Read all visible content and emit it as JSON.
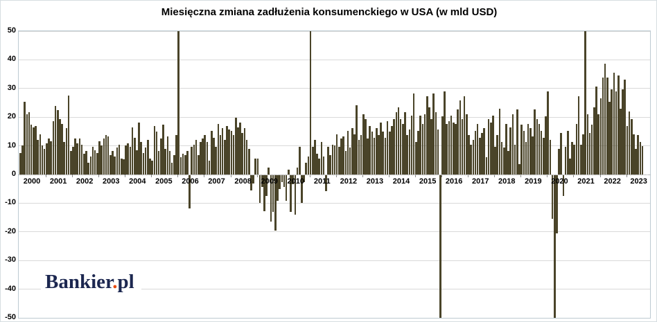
{
  "title": "Miesięczna zmiana zadłużenia konsumenckiego w USA (w mld USD)",
  "logo": {
    "text_main": "Bankier",
    "dot": ".",
    "text_suffix": "pl"
  },
  "colors": {
    "bar": "#4a4429",
    "grid": "#d9d9d9",
    "zero_axis": "#8a8a8a",
    "plot_border": "#bdcad1",
    "text": "#000000",
    "logo_navy": "#1c2750",
    "logo_dot": "#e8490f"
  },
  "chart_data": {
    "type": "bar",
    "title": "Miesięczna zmiana zadłużenia konsumenckiego w USA (w mld USD)",
    "ylabel": "mld USD",
    "xlabel": "",
    "frequency": "monthly",
    "x_start": "2000-01",
    "x_end": "2023-08",
    "ylim": [
      -50,
      50
    ],
    "grid": true,
    "legend_position": "none",
    "y_ticks": [
      50,
      40,
      30,
      20,
      10,
      0,
      -10,
      -20,
      -30,
      -40,
      -50
    ],
    "year_labels": [
      "2000",
      "2001",
      "2002",
      "2003",
      "2004",
      "2005",
      "2006",
      "2007",
      "2008",
      "2009",
      "2010",
      "2011",
      "2012",
      "2013",
      "2014",
      "2015",
      "2016",
      "2017",
      "2018",
      "2019",
      "2020",
      "2021",
      "2022",
      "2023"
    ],
    "clipped_to_ylim": true,
    "series": [
      {
        "name": "Miesięczna zmiana zadłużenia",
        "values": [
          7.5,
          10.1,
          25.4,
          20.9,
          21.7,
          17.3,
          16.5,
          16.9,
          12.1,
          14.1,
          10.1,
          8.9,
          10.9,
          12.5,
          11.7,
          18.5,
          23.8,
          22.5,
          19.3,
          17.7,
          11.3,
          16.1,
          27.5,
          8.1,
          9.7,
          12.5,
          10.9,
          12.5,
          10.5,
          7.2,
          8.1,
          4.0,
          6.4,
          9.7,
          8.5,
          7.6,
          11.7,
          10.1,
          12.5,
          13.7,
          13.3,
          6.8,
          8.1,
          6.4,
          9.3,
          10.5,
          5.6,
          5.2,
          10.1,
          10.9,
          9.7,
          16.5,
          12.9,
          8.5,
          18.1,
          11.3,
          7.6,
          9.3,
          12.1,
          5.6,
          4.8,
          16.9,
          14.9,
          8.1,
          12.5,
          17.3,
          8.9,
          13.3,
          8.1,
          4.0,
          6.8,
          13.7,
          55.0,
          6.0,
          7.2,
          6.8,
          8.1,
          -11.5,
          9.7,
          10.5,
          12.1,
          6.8,
          11.3,
          12.5,
          13.7,
          11.3,
          4.8,
          15.3,
          12.9,
          9.7,
          17.7,
          13.7,
          16.1,
          12.1,
          16.9,
          15.7,
          15.3,
          13.7,
          19.7,
          16.5,
          18.1,
          14.5,
          16.1,
          12.1,
          8.9,
          -5.2,
          -2.8,
          5.6,
          5.6,
          -9.7,
          -4.0,
          -12.5,
          -7.2,
          2.4,
          -16.1,
          -12.9,
          -19.3,
          -8.9,
          -4.8,
          -2.4,
          -4.0,
          -8.9,
          1.6,
          -12.9,
          -3.2,
          -13.7,
          2.4,
          9.7,
          -9.7,
          -2.4,
          4.0,
          6.4,
          55.0,
          9.7,
          12.1,
          7.2,
          5.6,
          11.3,
          6.4,
          -5.6,
          9.7,
          6.8,
          10.5,
          10.1,
          14.1,
          9.7,
          12.5,
          13.3,
          8.1,
          15.3,
          9.3,
          16.1,
          14.1,
          24.2,
          12.1,
          13.7,
          21.0,
          19.3,
          12.5,
          16.9,
          14.9,
          12.9,
          16.1,
          13.7,
          18.1,
          14.9,
          12.9,
          18.5,
          14.9,
          16.9,
          19.3,
          21.8,
          23.4,
          19.3,
          17.7,
          21.8,
          13.7,
          15.7,
          20.6,
          28.2,
          11.3,
          15.3,
          20.6,
          17.7,
          21.0,
          27.4,
          23.4,
          19.3,
          28.2,
          21.8,
          15.7,
          -52.0,
          20.2,
          29.0,
          17.7,
          18.5,
          20.6,
          18.1,
          17.7,
          22.6,
          25.8,
          19.3,
          27.4,
          21.0,
          13.7,
          10.5,
          12.1,
          15.3,
          17.7,
          12.9,
          14.5,
          16.1,
          6.0,
          19.3,
          18.1,
          20.6,
          9.7,
          13.7,
          23.0,
          11.3,
          9.3,
          17.7,
          8.1,
          16.5,
          21.0,
          10.5,
          22.6,
          3.6,
          17.3,
          15.3,
          11.3,
          17.7,
          16.1,
          13.3,
          22.6,
          19.3,
          17.7,
          15.3,
          12.9,
          20.2,
          29.0,
          12.1,
          -15.3,
          -69.0,
          -20.2,
          8.9,
          14.5,
          -7.2,
          9.7,
          15.3,
          5.6,
          11.3,
          10.5,
          17.7,
          27.4,
          10.5,
          14.1,
          55.0,
          21.0,
          14.5,
          17.3,
          23.4,
          30.6,
          21.0,
          26.6,
          33.8,
          38.7,
          33.8,
          25.4,
          29.8,
          35.4,
          29.0,
          34.6,
          23.0,
          29.8,
          33.0,
          16.9,
          21.9,
          19.3,
          14.1,
          9.0,
          13.8,
          11.3,
          10.0
        ]
      }
    ]
  }
}
